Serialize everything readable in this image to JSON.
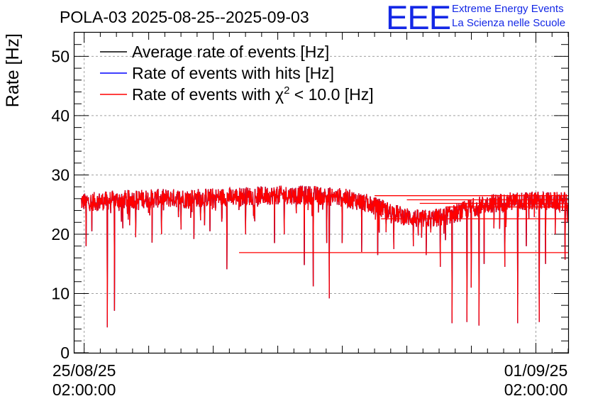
{
  "logo": {
    "letters": "EEE",
    "line1": "Extreme Energy Events",
    "line2": "La Scienza nelle Scuole",
    "color": "#1428e6"
  },
  "chart_data": {
    "type": "line",
    "title": "POLA-03 2025-08-25--2025-09-03",
    "ylabel": "Rate [Hz]",
    "xlabel": "",
    "ylim": [
      0,
      54
    ],
    "yticks": [
      "0",
      "10",
      "20",
      "30",
      "40",
      "50"
    ],
    "xlim_days": [
      -0.15,
      7.5
    ],
    "xticks": [
      {
        "day": 0,
        "date": "25/08/25",
        "time": "02:00:00"
      },
      {
        "day": 7,
        "date": "01/09/25",
        "time": "02:00:00"
      }
    ],
    "grid": true,
    "legend_position": "top-left",
    "series": [
      {
        "name": "Average rate of events [Hz]",
        "color": "#000000"
      },
      {
        "name": "Rate of events with hits [Hz]",
        "color": "#0000ff"
      },
      {
        "name": "Rate of events with χ² < 10.0 [Hz]",
        "label_prefix": "Rate of events with χ",
        "label_sup": "2",
        "label_suffix": " < 10.0 [Hz]",
        "color": "#ff0000"
      }
    ],
    "data_days_range": [
      -0.05,
      7.5
    ],
    "baseline_points": [
      [
        -0.05,
        25.5
      ],
      [
        0.2,
        25.5
      ],
      [
        0.5,
        25.8
      ],
      [
        1.0,
        26.0
      ],
      [
        1.5,
        26.1
      ],
      [
        2.0,
        26.2
      ],
      [
        2.5,
        26.4
      ],
      [
        3.0,
        26.6
      ],
      [
        3.5,
        26.6
      ],
      [
        4.0,
        26.2
      ],
      [
        4.3,
        25.5
      ],
      [
        4.6,
        24.3
      ],
      [
        4.9,
        23.2
      ],
      [
        5.2,
        22.5
      ],
      [
        5.5,
        22.8
      ],
      [
        5.8,
        23.6
      ],
      [
        6.0,
        24.5
      ],
      [
        6.3,
        25.2
      ],
      [
        6.6,
        25.5
      ],
      [
        7.0,
        25.6
      ],
      [
        7.5,
        25.5
      ]
    ],
    "noise_amplitude": 1.6,
    "dips": [
      [
        0.03,
        18.0
      ],
      [
        0.12,
        20.5
      ],
      [
        0.36,
        4.3
      ],
      [
        0.47,
        7.1
      ],
      [
        0.6,
        21.0
      ],
      [
        0.8,
        19.5
      ],
      [
        1.05,
        18.6
      ],
      [
        1.2,
        20.0
      ],
      [
        1.5,
        20.8
      ],
      [
        1.7,
        19.2
      ],
      [
        1.95,
        20.5
      ],
      [
        2.21,
        14.1
      ],
      [
        2.5,
        20.0
      ],
      [
        2.95,
        18.5
      ],
      [
        3.1,
        20.0
      ],
      [
        3.41,
        14.8
      ],
      [
        3.55,
        11.2
      ],
      [
        3.76,
        18.5
      ],
      [
        3.8,
        9.2
      ],
      [
        4.0,
        18.5
      ],
      [
        4.3,
        17.0
      ],
      [
        4.55,
        16.5
      ],
      [
        4.8,
        17.5
      ],
      [
        5.1,
        18.0
      ],
      [
        5.3,
        16.5
      ],
      [
        5.52,
        14.5
      ],
      [
        5.6,
        19.0
      ],
      [
        5.7,
        5.0
      ],
      [
        5.93,
        5.2
      ],
      [
        6.0,
        11.0
      ],
      [
        6.12,
        4.6
      ],
      [
        6.2,
        15.0
      ],
      [
        6.35,
        21.0
      ],
      [
        6.52,
        14.5
      ],
      [
        6.72,
        5.0
      ],
      [
        6.85,
        18.0
      ],
      [
        7.05,
        5.2
      ],
      [
        7.15,
        15.0
      ],
      [
        7.3,
        20.0
      ],
      [
        7.45,
        15.7
      ]
    ],
    "gap_lines": [
      {
        "from_day": 2.4,
        "to_day": 6.55,
        "value": 16.9
      },
      {
        "from_day": 6.55,
        "to_day": 7.5,
        "value": 16.9
      },
      {
        "from_day": 4.5,
        "to_day": 7.5,
        "value": 26.5
      },
      {
        "from_day": 5.0,
        "to_day": 7.5,
        "value": 25.8
      },
      {
        "from_day": 5.2,
        "to_day": 7.5,
        "value": 25.2
      },
      {
        "from_day": 5.6,
        "to_day": 7.5,
        "value": 24.6
      },
      {
        "from_day": 4.6,
        "to_day": 7.5,
        "value": 22.6
      }
    ]
  }
}
